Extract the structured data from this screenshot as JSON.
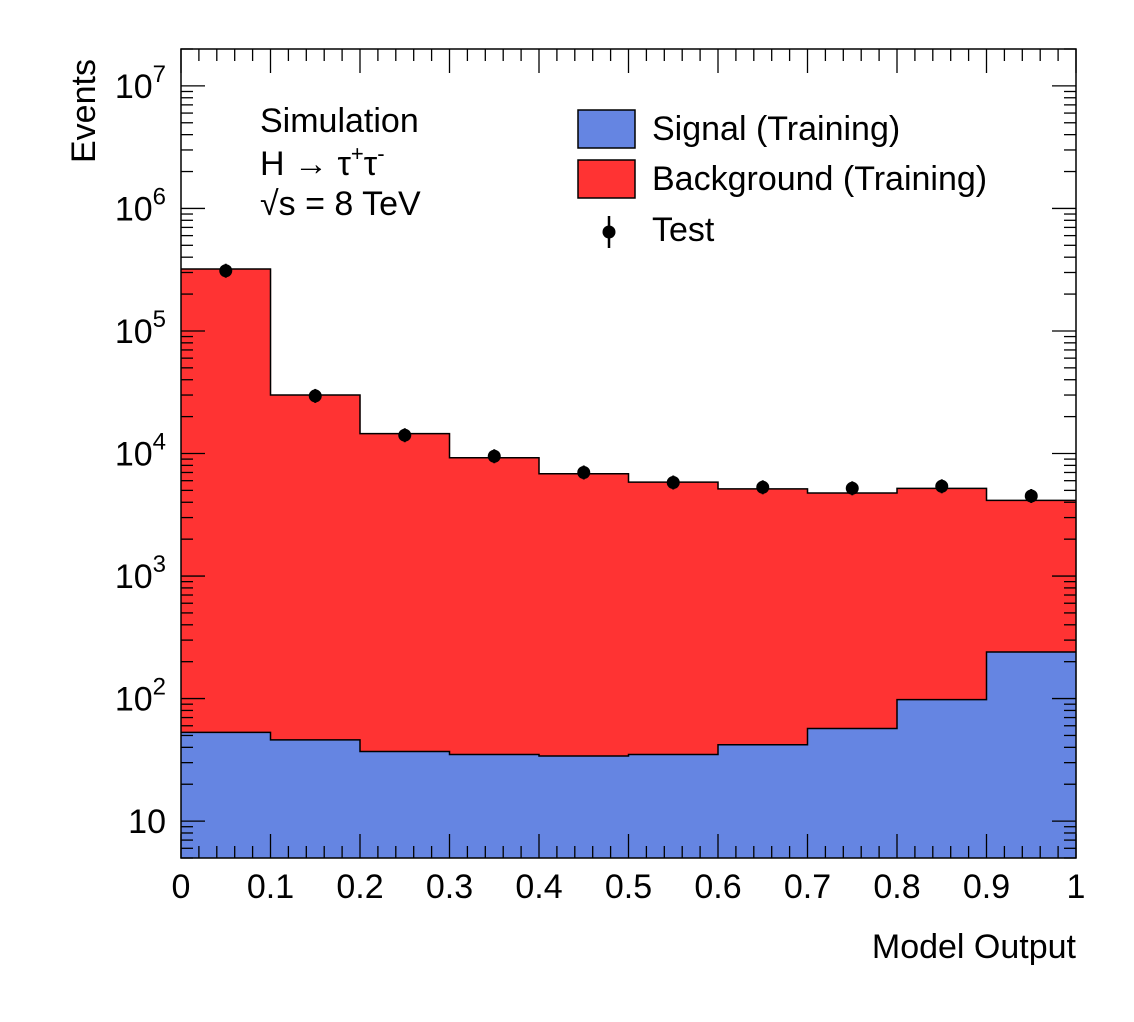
{
  "chart_data": {
    "type": "bar",
    "stacked": true,
    "xlabel": "Model Output",
    "ylabel": "Events",
    "xlim": [
      0,
      1
    ],
    "ylim": [
      5,
      20000000
    ],
    "yscale": "log",
    "bin_edges": [
      0,
      0.1,
      0.2,
      0.3,
      0.4,
      0.5,
      0.6,
      0.7,
      0.8,
      0.9,
      1.0
    ],
    "x_ticks": [
      "0",
      "0.1",
      "0.2",
      "0.3",
      "0.4",
      "0.5",
      "0.6",
      "0.7",
      "0.8",
      "0.9",
      "1"
    ],
    "y_ticks": [
      {
        "value": 10,
        "base": "10",
        "exp": ""
      },
      {
        "value": 100,
        "base": "10",
        "exp": "2"
      },
      {
        "value": 1000,
        "base": "10",
        "exp": "3"
      },
      {
        "value": 10000,
        "base": "10",
        "exp": "4"
      },
      {
        "value": 100000,
        "base": "10",
        "exp": "5"
      },
      {
        "value": 1000000,
        "base": "10",
        "exp": "6"
      },
      {
        "value": 10000000,
        "base": "10",
        "exp": "7"
      }
    ],
    "series": [
      {
        "name": "Signal (Training)",
        "kind": "fill",
        "color": "#6585e2",
        "values": [
          53,
          46,
          37,
          35,
          34,
          35,
          42,
          57,
          98,
          240
        ]
      },
      {
        "name": "Background (Training)",
        "kind": "fill",
        "color": "#ff3333",
        "values": [
          320000,
          30000,
          14500,
          9200,
          6800,
          5800,
          5100,
          4700,
          5100,
          3900
        ]
      },
      {
        "name": "Test",
        "kind": "points",
        "color": "#000000",
        "values": [
          310000,
          29500,
          14100,
          9500,
          7000,
          5800,
          5300,
          5200,
          5400,
          4500
        ]
      }
    ],
    "legend_position": "top-right",
    "grid": false
  },
  "annotation": {
    "line1": "Simulation",
    "line2_prefix": "H → τ",
    "line2_sup1": "+",
    "line2_mid": "τ",
    "line2_sup2": "-",
    "line3": "√s = 8 TeV"
  }
}
